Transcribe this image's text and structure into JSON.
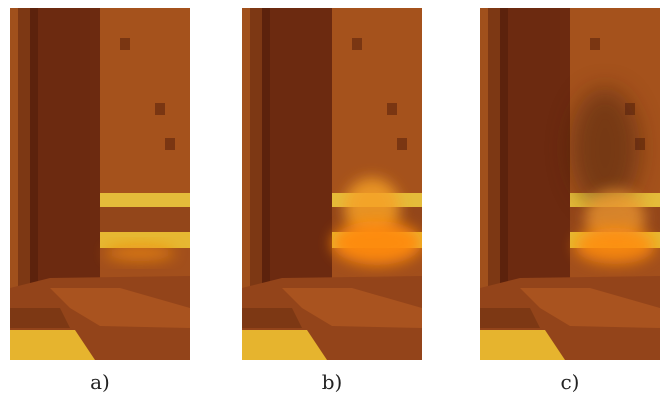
{
  "panels": [
    {
      "caption": "a)"
    },
    {
      "caption": "b)"
    },
    {
      "caption": "c)"
    }
  ]
}
